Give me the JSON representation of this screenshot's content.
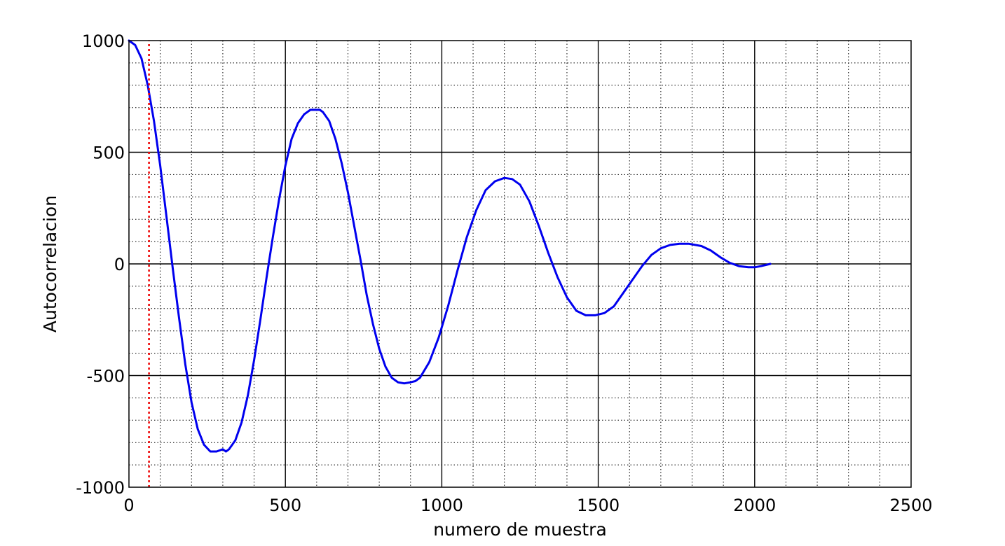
{
  "chart_data": {
    "type": "line",
    "title": "",
    "xlabel": "numero de muestra",
    "ylabel": "Autocorrelacion",
    "xlim": [
      0,
      2500
    ],
    "ylim": [
      -1000,
      1000
    ],
    "x_ticks": [
      0,
      500,
      1000,
      1500,
      2000,
      2500
    ],
    "y_ticks": [
      -1000,
      -500,
      0,
      500,
      1000
    ],
    "x_tick_labels": [
      "0",
      "500",
      "1000",
      "1500",
      "2000",
      "2500"
    ],
    "y_tick_labels": [
      "-1000",
      "-500",
      "0",
      "500",
      "1000"
    ],
    "x_minor_step": 100,
    "y_minor_step": 100,
    "grid": true,
    "series": [
      {
        "color": "#0000ee",
        "x": [
          0,
          20,
          40,
          60,
          80,
          100,
          120,
          140,
          160,
          180,
          200,
          220,
          240,
          260,
          280,
          300,
          310,
          320,
          340,
          360,
          380,
          400,
          420,
          440,
          460,
          480,
          500,
          520,
          540,
          560,
          580,
          600,
          610,
          620,
          640,
          660,
          680,
          700,
          720,
          740,
          760,
          780,
          800,
          820,
          840,
          860,
          880,
          900,
          915,
          930,
          960,
          990,
          1020,
          1050,
          1080,
          1110,
          1140,
          1170,
          1200,
          1225,
          1250,
          1280,
          1310,
          1340,
          1370,
          1400,
          1430,
          1460,
          1490,
          1520,
          1550,
          1580,
          1610,
          1640,
          1670,
          1700,
          1730,
          1760,
          1790,
          1810,
          1830,
          1860,
          1890,
          1920,
          1950,
          1980,
          2000,
          2020,
          2050
        ],
        "y": [
          1000,
          980,
          920,
          800,
          640,
          440,
          210,
          -20,
          -240,
          -450,
          -620,
          -740,
          -810,
          -840,
          -840,
          -830,
          -840,
          -830,
          -790,
          -710,
          -590,
          -430,
          -250,
          -60,
          120,
          290,
          440,
          560,
          630,
          670,
          690,
          690,
          690,
          680,
          640,
          560,
          450,
          320,
          170,
          20,
          -140,
          -270,
          -380,
          -460,
          -510,
          -530,
          -535,
          -530,
          -525,
          -510,
          -440,
          -330,
          -190,
          -30,
          120,
          240,
          330,
          370,
          385,
          380,
          355,
          280,
          170,
          50,
          -60,
          -150,
          -210,
          -230,
          -230,
          -220,
          -190,
          -130,
          -70,
          -10,
          40,
          70,
          85,
          90,
          90,
          85,
          80,
          60,
          30,
          5,
          -10,
          -15,
          -15,
          -10,
          0
        ],
        "width": 3
      },
      {
        "color": "#ee0000",
        "x": [
          64,
          64
        ],
        "y": [
          -1000,
          1000
        ],
        "style": "dotted",
        "width": 2.5
      }
    ]
  }
}
